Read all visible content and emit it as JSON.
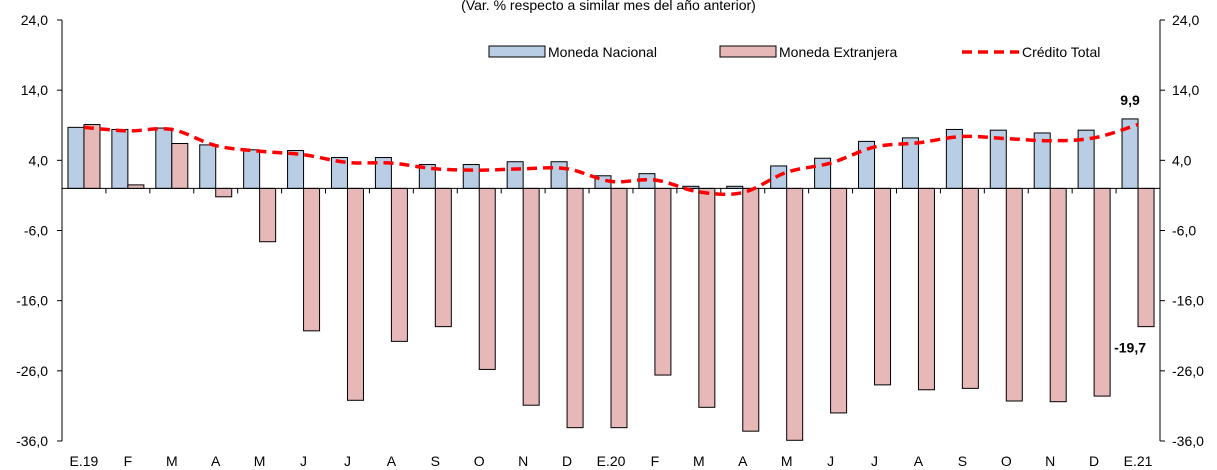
{
  "subtitle": "(Var. % respecto a similar mes del año anterior)",
  "colors": {
    "moneda_nacional": "#b9cde5",
    "moneda_extranjera": "#e6b9b8",
    "credito_total": "#ff0000",
    "bar_border": "#000000"
  },
  "chart_data": {
    "type": "bar",
    "title": "",
    "subtitle": "(Var. % respecto a similar mes del año anterior)",
    "categories": [
      "E.19",
      "F",
      "M",
      "A",
      "M",
      "J",
      "J",
      "A",
      "S",
      "O",
      "N",
      "D",
      "E.20",
      "F",
      "M",
      "A",
      "M",
      "J",
      "J",
      "A",
      "S",
      "O",
      "N",
      "D",
      "E.21"
    ],
    "ylim": [
      -36,
      24
    ],
    "yticks": [
      "24,0",
      "14,0",
      "4,0",
      "-6,0",
      "-16,0",
      "-26,0",
      "-36,0"
    ],
    "ytick_values": [
      24,
      14,
      4,
      -6,
      -16,
      -26,
      -36
    ],
    "grid": false,
    "legend_position": "top-right",
    "series": [
      {
        "name": "Moneda Nacional",
        "type": "bar",
        "values": [
          8.7,
          8.4,
          8.6,
          6.2,
          5.5,
          5.4,
          4.4,
          4.4,
          3.4,
          3.4,
          3.8,
          3.8,
          1.8,
          2.1,
          0.3,
          0.3,
          3.2,
          4.3,
          6.7,
          7.2,
          8.4,
          8.3,
          7.9,
          8.3,
          9.9
        ]
      },
      {
        "name": "Moneda Extranjera",
        "type": "bar",
        "values": [
          9.1,
          0.5,
          6.4,
          -1.2,
          -7.6,
          -20.3,
          -30.2,
          -21.8,
          -19.7,
          -25.8,
          -30.9,
          -34.1,
          -34.1,
          -26.6,
          -31.2,
          -34.6,
          -35.9,
          -32.0,
          -28.0,
          -28.7,
          -28.5,
          -30.3,
          -30.4,
          -29.6,
          -19.7
        ]
      },
      {
        "name": "Crédito Total",
        "type": "line",
        "style": "dashed",
        "values": [
          8.7,
          8.2,
          8.4,
          6.1,
          5.3,
          4.8,
          3.7,
          3.6,
          2.8,
          2.6,
          2.8,
          2.8,
          1.0,
          1.2,
          -0.5,
          -0.6,
          2.3,
          3.6,
          5.9,
          6.5,
          7.4,
          7.1,
          6.8,
          7.2,
          9.1
        ]
      }
    ],
    "annotations": [
      {
        "text": "9,9",
        "series": "Moneda Nacional",
        "category_index": 24
      },
      {
        "text": "-19,7",
        "series": "Moneda Extranjera",
        "category_index": 24
      }
    ]
  }
}
